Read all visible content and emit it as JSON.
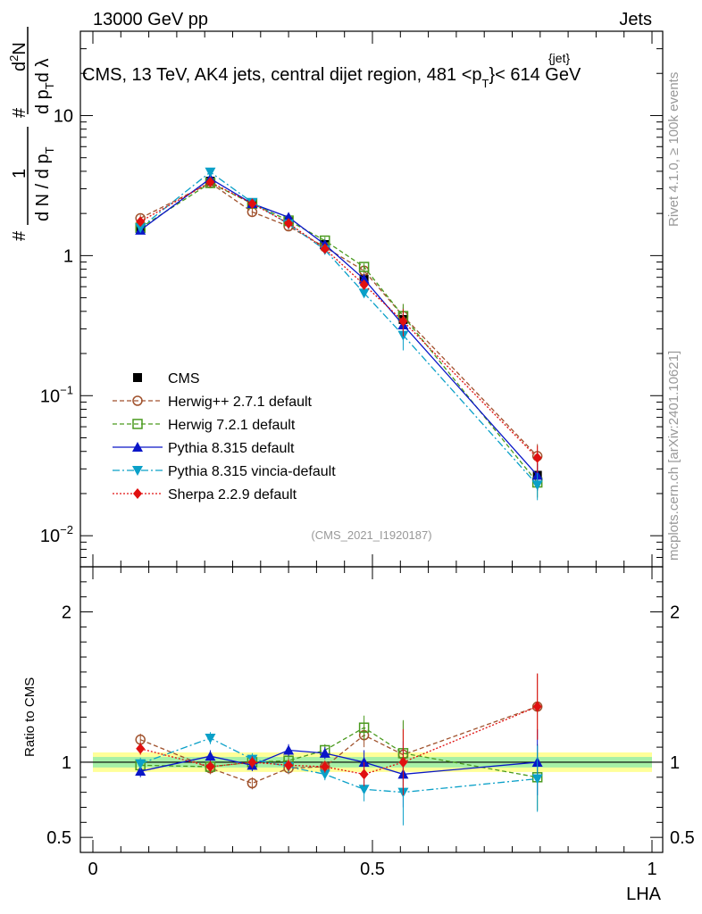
{
  "header": {
    "left": "13000 GeV pp",
    "right": "Jets"
  },
  "main_title": "CMS, 13 TeV, AK4 jets, central dijet region, 481 <p",
  "main_title_sup": "{jet}",
  "main_title_sub": "T",
  "main_title_end": "}< 614 GeV",
  "side_labels": {
    "rivet": "Rivet 4.1.0, ≥ 100k events",
    "mcplots": "mcplots.cern.ch [arXiv:2401.10621]"
  },
  "analysis_id": "(CMS_2021_I1920187)",
  "upper_ylabel": {
    "num": "1",
    "den": "d N / d p",
    "den_sub": "T",
    "hash": "#",
    "right_num": "d",
    "right_num_sup": "2",
    "right_num_end": "N",
    "right_den": "d p",
    "right_den_sub": "T",
    "right_den_end": "d λ"
  },
  "ratio_ylabel": "Ratio to CMS",
  "xlabel": "LHA",
  "legend": [
    {
      "key": "cms",
      "label": "CMS",
      "color": "#000000",
      "marker": "square-filled",
      "dash": "none"
    },
    {
      "key": "herwigpp",
      "label": "Herwig++ 2.7.1 default",
      "color": "#a0522d",
      "marker": "circle-open",
      "dash": "5,3"
    },
    {
      "key": "herwig7",
      "label": "Herwig 7.2.1 default",
      "color": "#4a9a1f",
      "marker": "square-open",
      "dash": "5,3"
    },
    {
      "key": "pythia",
      "label": "Pythia 8.315 default",
      "color": "#0a16c8",
      "marker": "triangle-up",
      "dash": "none"
    },
    {
      "key": "vincia",
      "label": "Pythia 8.315 vincia-default",
      "color": "#0aa0c8",
      "marker": "triangle-down",
      "dash": "8,3,2,3"
    },
    {
      "key": "sherpa",
      "label": "Sherpa 2.2.9 default",
      "color": "#e01010",
      "marker": "diamond",
      "dash": "2,2"
    }
  ],
  "chart_data": {
    "type": "line",
    "title": "CMS, 13 TeV, AK4 jets, central dijet region, 481 < pT jet < 614 GeV",
    "xlabel": "LHA",
    "x_range": [
      0,
      1
    ],
    "x_ticks": [
      "0",
      "0.5",
      "1"
    ],
    "x": [
      0.085,
      0.21,
      0.285,
      0.35,
      0.415,
      0.485,
      0.555,
      0.795
    ],
    "upper": {
      "ylabel": "1/(dN/dpT) d2N/(dpT dλ)",
      "yscale": "log",
      "y_range": [
        0.006,
        40
      ],
      "y_ticks": [
        {
          "value": 0.01,
          "label": "10",
          "sup": "−2"
        },
        {
          "value": 0.1,
          "label": "10",
          "sup": "−1"
        },
        {
          "value": 1,
          "label": "1",
          "sup": ""
        },
        {
          "value": 10,
          "label": "10",
          "sup": ""
        }
      ],
      "series": [
        {
          "key": "cms",
          "values": [
            1.6,
            3.4,
            2.35,
            1.75,
            1.2,
            0.68,
            0.35,
            0.027
          ]
        },
        {
          "key": "herwigpp",
          "values": [
            1.85,
            3.3,
            2.05,
            1.62,
            1.15,
            0.78,
            0.37,
            0.037
          ]
        },
        {
          "key": "herwig7",
          "values": [
            1.58,
            3.3,
            2.35,
            1.78,
            1.28,
            0.83,
            0.37,
            0.024
          ]
        },
        {
          "key": "pythia",
          "values": [
            1.52,
            3.55,
            2.35,
            1.88,
            1.2,
            0.68,
            0.32,
            0.027
          ]
        },
        {
          "key": "vincia",
          "values": [
            1.58,
            3.95,
            2.4,
            1.68,
            1.1,
            0.54,
            0.27,
            0.023
          ]
        },
        {
          "key": "sherpa",
          "values": [
            1.75,
            3.35,
            2.35,
            1.7,
            1.12,
            0.62,
            0.34,
            0.036
          ]
        }
      ]
    },
    "ratio": {
      "ylabel": "Ratio to CMS",
      "y_range": [
        0.4,
        2.3
      ],
      "y_ticks": [
        "0.5",
        "1",
        "2"
      ],
      "band_inner_halfwidth": 0.035,
      "band_outer_halfwidth": 0.065,
      "series": [
        {
          "key": "herwigpp",
          "values": [
            1.15,
            0.96,
            0.86,
            0.96,
            0.97,
            1.18,
            1.05,
            1.37
          ]
        },
        {
          "key": "herwig7",
          "values": [
            0.98,
            0.97,
            1.0,
            1.01,
            1.08,
            1.23,
            1.06,
            0.9
          ]
        },
        {
          "key": "pythia",
          "values": [
            0.94,
            1.04,
            0.98,
            1.08,
            1.06,
            1.0,
            0.92,
            1.0
          ]
        },
        {
          "key": "vincia",
          "values": [
            0.99,
            1.16,
            1.02,
            0.97,
            0.92,
            0.82,
            0.8,
            0.89
          ]
        },
        {
          "key": "sherpa",
          "values": [
            1.09,
            0.97,
            1.0,
            0.98,
            0.97,
            0.92,
            1.0,
            1.37
          ]
        }
      ]
    }
  }
}
